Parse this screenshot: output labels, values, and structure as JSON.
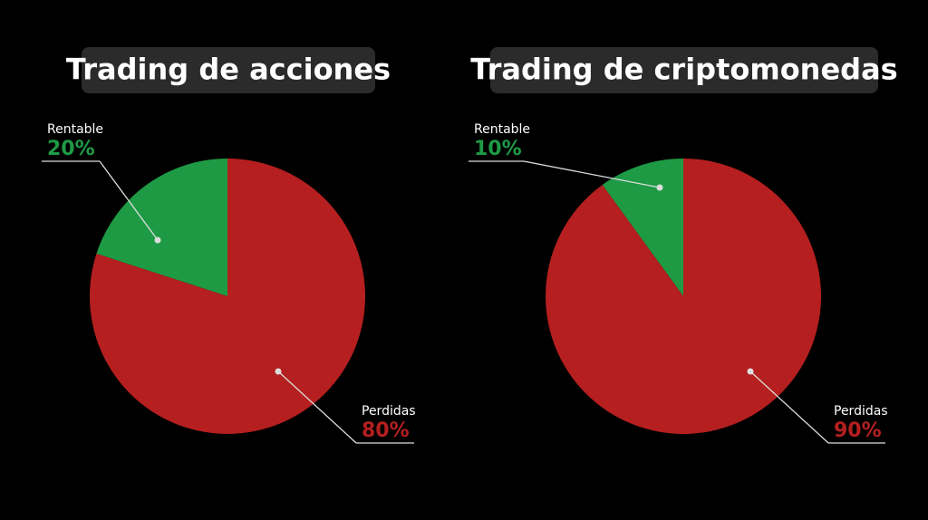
{
  "chart_data": [
    {
      "type": "pie",
      "title": "Trading de acciones",
      "categories": [
        "Rentable",
        "Perdidas"
      ],
      "values": [
        20,
        80
      ],
      "value_labels": [
        "20%",
        "80%"
      ],
      "colors": [
        "#1e9a45",
        "#b51f1f"
      ]
    },
    {
      "type": "pie",
      "title": "Trading de criptomonedas",
      "categories": [
        "Rentable",
        "Perdidas"
      ],
      "values": [
        10,
        90
      ],
      "value_labels": [
        "10%",
        "90%"
      ],
      "colors": [
        "#1e9a45",
        "#b51f1f"
      ]
    }
  ]
}
